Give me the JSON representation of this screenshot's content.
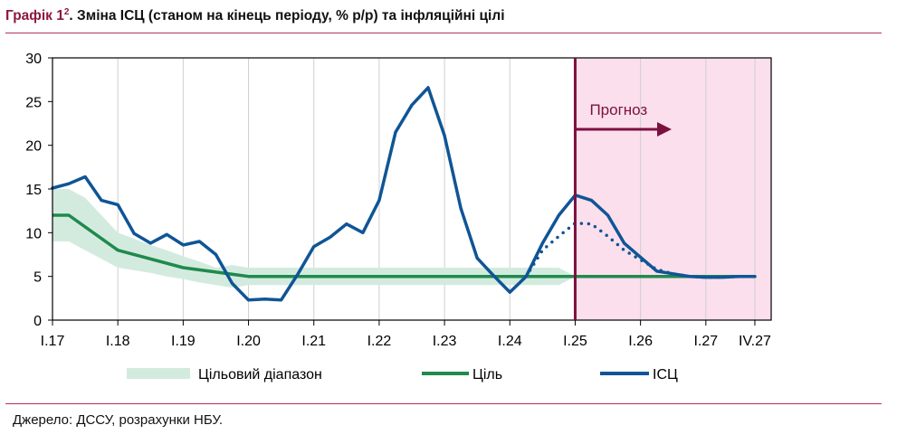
{
  "header": {
    "title_prefix": "Графік 1",
    "title_sup": "2",
    "title_text": ". Зміна ІСЦ (станом на кінець періоду, % р/р) та інфляційні цілі"
  },
  "footer": {
    "source": "Джерело: ДССУ, розрахунки НБУ."
  },
  "colors": {
    "cpi": "#0f5596",
    "target": "#1f8a4c",
    "range": "#d3ebdf",
    "forecast_bg": "#fbdfec",
    "forecast_line": "#7b1040",
    "axis": "#000000"
  },
  "chart_data": {
    "type": "line",
    "title": "Зміна ІСЦ (станом на кінець періоду, % р/р) та інфляційні цілі",
    "ylim": [
      0,
      30
    ],
    "y_ticks": [
      0,
      5,
      10,
      15,
      20,
      25,
      30
    ],
    "x_tick_labels": [
      "I.17",
      "I.18",
      "I.19",
      "I.20",
      "I.21",
      "I.22",
      "I.23",
      "I.24",
      "I.25",
      "I.26",
      "I.27",
      "IV.27"
    ],
    "x_tick_quarters": [
      0,
      4,
      8,
      12,
      16,
      20,
      24,
      28,
      32,
      36,
      40,
      43
    ],
    "xlim": [
      0,
      44
    ],
    "grid": "vertical",
    "legend_position": "bottom",
    "forecast": {
      "start_quarter": 32,
      "label": "Прогноз"
    },
    "series": [
      {
        "name": "Цільовий діапазон",
        "kind": "band",
        "x": [
          0,
          1,
          2,
          3,
          4,
          5,
          6,
          7,
          8,
          9,
          10,
          11,
          12,
          13,
          14,
          15,
          16,
          17,
          18,
          19,
          20,
          21,
          22,
          23,
          24,
          25,
          26,
          27,
          28,
          29,
          30,
          31,
          32
        ],
        "lower": [
          9,
          9,
          8,
          7,
          6,
          5.7,
          5.4,
          5,
          4.7,
          4.3,
          4,
          3.7,
          4,
          4,
          4,
          4,
          4,
          4,
          4,
          4,
          4,
          4,
          4,
          4,
          4,
          4,
          4,
          4,
          4,
          4,
          4,
          4,
          5
        ],
        "upper": [
          15,
          15,
          14,
          12,
          10,
          9.3,
          8.6,
          8,
          7.3,
          6.7,
          6,
          6.3,
          6,
          6,
          6,
          6,
          6,
          6,
          6,
          6,
          6,
          6,
          6,
          6,
          6,
          6,
          6,
          6,
          6,
          6,
          6,
          6,
          5
        ]
      },
      {
        "name": "Ціль",
        "kind": "line",
        "x": [
          0,
          1,
          4,
          8,
          12,
          16,
          20,
          24,
          28,
          32,
          43
        ],
        "values": [
          12,
          12,
          8,
          6,
          5,
          5,
          5,
          5,
          5,
          5,
          5
        ]
      },
      {
        "name": "ІСЦ",
        "kind": "line",
        "x": [
          0,
          1,
          2,
          3,
          4,
          5,
          6,
          7,
          8,
          9,
          10,
          11,
          12,
          13,
          14,
          15,
          16,
          17,
          18,
          19,
          20,
          21,
          22,
          23,
          24,
          25,
          26,
          27,
          28,
          29,
          30,
          31,
          32,
          33,
          34,
          35,
          36,
          37,
          38,
          39,
          40,
          41,
          42,
          43
        ],
        "values": [
          15.1,
          15.6,
          16.4,
          13.7,
          13.2,
          9.9,
          8.8,
          9.8,
          8.6,
          9.0,
          7.5,
          4.2,
          2.3,
          2.4,
          2.3,
          5.2,
          8.4,
          9.5,
          11.0,
          10.0,
          13.7,
          21.5,
          24.6,
          26.6,
          21.1,
          12.8,
          7.1,
          5.1,
          3.2,
          5.0,
          8.8,
          12.0,
          14.3,
          13.7,
          12.0,
          8.8,
          7.2,
          5.6,
          5.3,
          5.0,
          4.9,
          4.9,
          5.0,
          5.0
        ]
      },
      {
        "name": "",
        "kind": "dotted",
        "x": [
          29,
          30,
          31,
          32,
          33,
          34,
          35,
          36,
          37,
          38,
          39,
          40,
          41,
          42,
          43
        ],
        "values": [
          5.0,
          8.0,
          9.6,
          11.1,
          11.0,
          9.6,
          8.0,
          6.9,
          5.8,
          5.3,
          5.0,
          4.9,
          4.9,
          5.0,
          5.0
        ]
      }
    ]
  }
}
